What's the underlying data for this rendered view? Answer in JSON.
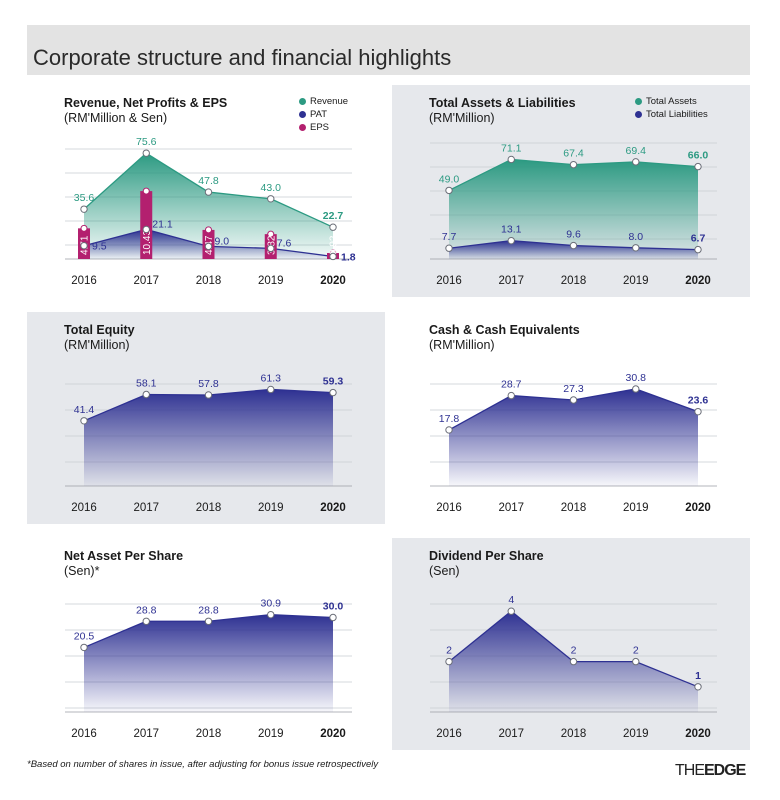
{
  "page": {
    "title": "Corporate structure and financial highlights",
    "footnote": "*Based on number of shares in issue, after adjusting for bonus issue retrospectively",
    "logo_the": "THE",
    "logo_edge": "EDGE"
  },
  "colors": {
    "green": "#2c9a82",
    "blue": "#2e3192",
    "magenta": "#b3206f",
    "panel_bg": "#e6e8ec"
  },
  "chart_data": [
    {
      "id": "revenue",
      "type": "line",
      "title": "Revenue, Net Profits & EPS",
      "subtitle": "(RM'Million & Sen)",
      "categories": [
        "2016",
        "2017",
        "2018",
        "2019",
        "2020"
      ],
      "ylim": [
        0,
        90
      ],
      "legend_position": "top-right",
      "series": [
        {
          "name": "Revenue",
          "kind": "area",
          "color": "#2c9a82",
          "values": [
            35.6,
            75.6,
            47.8,
            43.0,
            22.7
          ],
          "labels": [
            "35.6",
            "75.6",
            "47.8",
            "43.0",
            "22.7"
          ]
        },
        {
          "name": "PAT",
          "kind": "area",
          "color": "#2e3192",
          "values": [
            9.5,
            21.1,
            9.0,
            7.6,
            1.8
          ],
          "labels": [
            "9.5",
            "21.1",
            "9.0",
            "7.6",
            "1.8"
          ]
        },
        {
          "name": "EPS",
          "kind": "bar",
          "color": "#b3206f",
          "values": [
            4.71,
            10.43,
            4.47,
            3.82,
            0.92
          ],
          "labels": [
            "4.71",
            "10.43",
            "4.47",
            "3.82",
            "0.92"
          ]
        }
      ]
    },
    {
      "id": "assets",
      "type": "area",
      "title": "Total Assets & Liabilities",
      "subtitle": "(RM'Million)",
      "categories": [
        "2016",
        "2017",
        "2018",
        "2019",
        "2020"
      ],
      "ylim": [
        0,
        90
      ],
      "legend_position": "top-right",
      "series": [
        {
          "name": "Total Assets",
          "kind": "area",
          "color": "#2c9a82",
          "values": [
            49.0,
            71.1,
            67.4,
            69.4,
            66.0
          ],
          "labels": [
            "49.0",
            "71.1",
            "67.4",
            "69.4",
            "66.0"
          ]
        },
        {
          "name": "Total Liabilities",
          "kind": "area",
          "color": "#2e3192",
          "values": [
            7.7,
            13.1,
            9.6,
            8.0,
            6.7
          ],
          "labels": [
            "7.7",
            "13.1",
            "9.6",
            "8.0",
            "6.7"
          ]
        }
      ]
    },
    {
      "id": "equity",
      "type": "area",
      "title": "Total Equity",
      "subtitle": "(RM'Million)",
      "categories": [
        "2016",
        "2017",
        "2018",
        "2019",
        "2020"
      ],
      "ylim": [
        0,
        80
      ],
      "series": [
        {
          "name": "",
          "kind": "area",
          "color": "#2e3192",
          "values": [
            41.4,
            58.1,
            57.8,
            61.3,
            59.3
          ],
          "labels": [
            "41.4",
            "58.1",
            "57.8",
            "61.3",
            "59.3"
          ]
        }
      ]
    },
    {
      "id": "cash",
      "type": "area",
      "title": "Cash & Cash Equivalents",
      "subtitle": "(RM'Million)",
      "categories": [
        "2016",
        "2017",
        "2018",
        "2019",
        "2020"
      ],
      "ylim": [
        0,
        40
      ],
      "series": [
        {
          "name": "",
          "kind": "area",
          "color": "#2e3192",
          "values": [
            17.8,
            28.7,
            27.3,
            30.8,
            23.6
          ],
          "labels": [
            "17.8",
            "28.7",
            "27.3",
            "30.8",
            "23.6"
          ]
        }
      ]
    },
    {
      "id": "nav",
      "type": "area",
      "title": "Net Asset Per Share",
      "subtitle": "(Sen)*",
      "categories": [
        "2016",
        "2017",
        "2018",
        "2019",
        "2020"
      ],
      "ylim": [
        0,
        40
      ],
      "series": [
        {
          "name": "",
          "kind": "area",
          "color": "#2e3192",
          "values": [
            20.5,
            28.8,
            28.8,
            30.9,
            30.0
          ],
          "labels": [
            "20.5",
            "28.8",
            "28.8",
            "30.9",
            "30.0"
          ]
        }
      ]
    },
    {
      "id": "dividend",
      "type": "area",
      "title": "Dividend Per Share",
      "subtitle": "(Sen)",
      "categories": [
        "2016",
        "2017",
        "2018",
        "2019",
        "2020"
      ],
      "ylim": [
        0,
        5
      ],
      "series": [
        {
          "name": "",
          "kind": "area",
          "color": "#2e3192",
          "values": [
            2,
            4,
            2,
            2,
            1
          ],
          "labels": [
            "2",
            "4",
            "2",
            "2",
            "1"
          ]
        }
      ]
    }
  ]
}
